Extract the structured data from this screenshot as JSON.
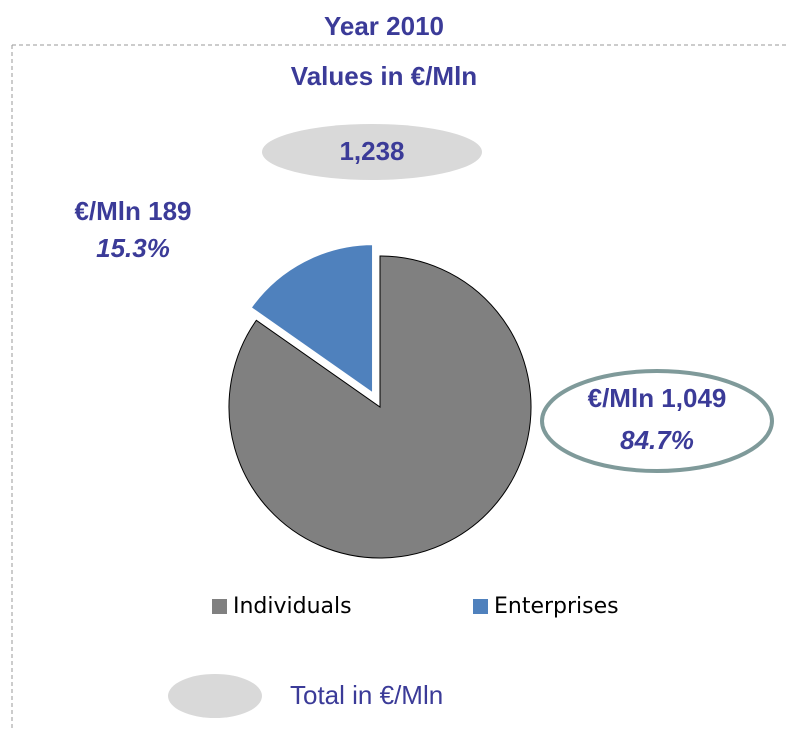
{
  "chart_data": {
    "type": "pie",
    "title": "Year 2010",
    "subtitle": "Values in €/Mln",
    "total": {
      "value": 1238,
      "label": "1,238"
    },
    "total_legend": "Total in €/Mln",
    "categories": [
      "Individuals",
      "Enterprises"
    ],
    "values": [
      1049,
      189
    ],
    "value_labels": [
      "€/Mln 1,049",
      "€/Mln 189"
    ],
    "percentages": [
      84.7,
      15.3
    ],
    "percentage_labels": [
      "84.7%",
      "15.3%"
    ],
    "colors": [
      "#808080",
      "#4f81bd"
    ],
    "exploded": [
      false,
      true
    ]
  }
}
